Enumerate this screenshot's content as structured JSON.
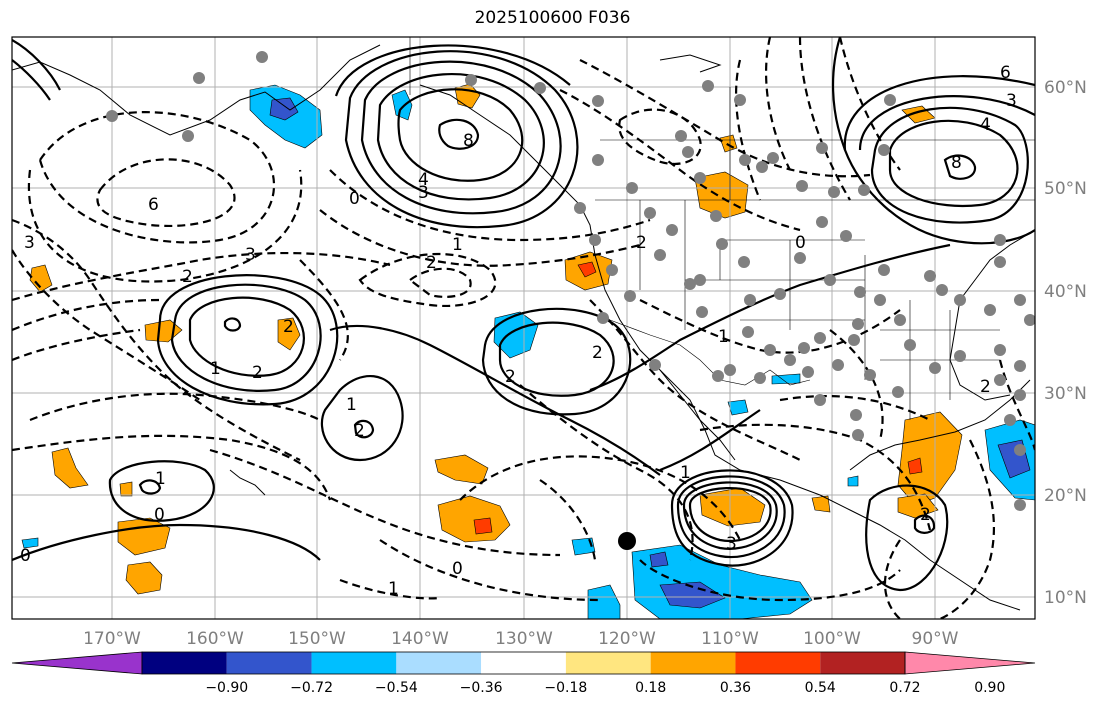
{
  "title": "2025100600 F036",
  "lon_labels": [
    "170°W",
    "160°W",
    "150°W",
    "140°W",
    "130°W",
    "120°W",
    "110°W",
    "100°W",
    "90°W"
  ],
  "lat_labels": [
    "60°N",
    "50°N",
    "40°N",
    "30°N",
    "20°N",
    "10°N"
  ],
  "colorbar": {
    "colors": [
      "#9933cc",
      "#000080",
      "#3355cc",
      "#00bfff",
      "#aaddff",
      "#ffffff",
      "#ffe680",
      "#ffa500",
      "#ff3c00",
      "#b22222",
      "#ff88aa"
    ],
    "labels": [
      "−0.90",
      "−0.72",
      "−0.54",
      "−0.36",
      "−0.18",
      "0.18",
      "0.36",
      "0.54",
      "0.72",
      "0.90"
    ]
  },
  "contour_labels": [
    "8",
    "6",
    "4",
    "3",
    "2",
    "1",
    "0",
    "1",
    "2",
    "2",
    "1",
    "2",
    "2",
    "3",
    "1",
    "0",
    "1",
    "3",
    "0",
    "0",
    "8",
    "6",
    "4",
    "3",
    "2",
    "2",
    "1",
    "0",
    "3",
    "1",
    "2",
    "2",
    "2"
  ]
}
